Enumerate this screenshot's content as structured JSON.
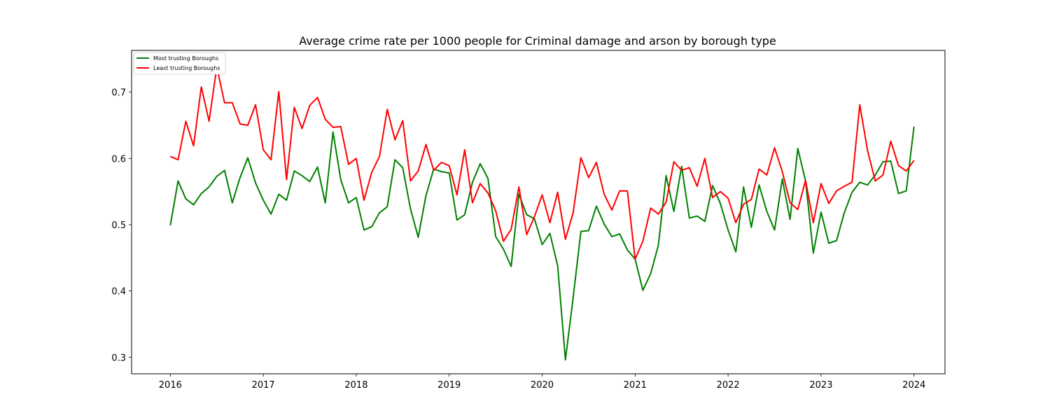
{
  "chart_data": {
    "type": "line",
    "title": "Average crime rate per 1000 people for Criminal damage and arson by borough type",
    "xlabel": "",
    "ylabel": "",
    "x_start": "2016-01",
    "x_ticks": [
      "2016",
      "2017",
      "2018",
      "2019",
      "2020",
      "2021",
      "2022",
      "2023",
      "2024"
    ],
    "y_ticks": [
      "0.3",
      "0.4",
      "0.5",
      "0.6",
      "0.7"
    ],
    "xlim": [
      "2015-08",
      "2024-05"
    ],
    "ylim": [
      0.275,
      0.763
    ],
    "grid": false,
    "legend_position": "top-left",
    "series": [
      {
        "name": "Most trusting Boroughs",
        "color": "#008000",
        "values": [
          0.499,
          0.566,
          0.539,
          0.53,
          0.547,
          0.557,
          0.573,
          0.582,
          0.533,
          0.571,
          0.601,
          0.563,
          0.537,
          0.516,
          0.546,
          0.537,
          0.581,
          0.574,
          0.565,
          0.587,
          0.533,
          0.64,
          0.568,
          0.533,
          0.541,
          0.492,
          0.497,
          0.518,
          0.527,
          0.598,
          0.586,
          0.524,
          0.481,
          0.544,
          0.584,
          0.58,
          0.578,
          0.507,
          0.515,
          0.564,
          0.592,
          0.57,
          0.482,
          0.463,
          0.437,
          0.546,
          0.515,
          0.509,
          0.47,
          0.487,
          0.438,
          0.296,
          0.39,
          0.49,
          0.491,
          0.528,
          0.501,
          0.482,
          0.486,
          0.462,
          0.448,
          0.401,
          0.426,
          0.469,
          0.574,
          0.52,
          0.588,
          0.51,
          0.513,
          0.505,
          0.559,
          0.532,
          0.492,
          0.459,
          0.557,
          0.496,
          0.56,
          0.52,
          0.492,
          0.569,
          0.508,
          0.615,
          0.566,
          0.457,
          0.519,
          0.472,
          0.476,
          0.518,
          0.549,
          0.564,
          0.56,
          0.575,
          0.595,
          0.596,
          0.547,
          0.551,
          0.648
        ]
      },
      {
        "name": "Least trusting Boroughs",
        "color": "#ff0000",
        "values": [
          0.603,
          0.598,
          0.656,
          0.619,
          0.708,
          0.656,
          0.738,
          0.684,
          0.684,
          0.652,
          0.65,
          0.681,
          0.613,
          0.598,
          0.701,
          0.568,
          0.677,
          0.645,
          0.68,
          0.692,
          0.659,
          0.647,
          0.648,
          0.591,
          0.6,
          0.537,
          0.579,
          0.603,
          0.674,
          0.628,
          0.657,
          0.566,
          0.581,
          0.621,
          0.582,
          0.594,
          0.589,
          0.545,
          0.613,
          0.533,
          0.562,
          0.548,
          0.521,
          0.475,
          0.493,
          0.557,
          0.485,
          0.512,
          0.545,
          0.503,
          0.549,
          0.478,
          0.518,
          0.601,
          0.571,
          0.594,
          0.546,
          0.522,
          0.551,
          0.551,
          0.448,
          0.475,
          0.525,
          0.516,
          0.534,
          0.595,
          0.582,
          0.586,
          0.558,
          0.6,
          0.541,
          0.55,
          0.54,
          0.503,
          0.531,
          0.538,
          0.584,
          0.575,
          0.616,
          0.58,
          0.533,
          0.523,
          0.567,
          0.503,
          0.562,
          0.532,
          0.551,
          0.558,
          0.564,
          0.681,
          0.612,
          0.566,
          0.575,
          0.626,
          0.589,
          0.581,
          0.597
        ]
      }
    ]
  }
}
